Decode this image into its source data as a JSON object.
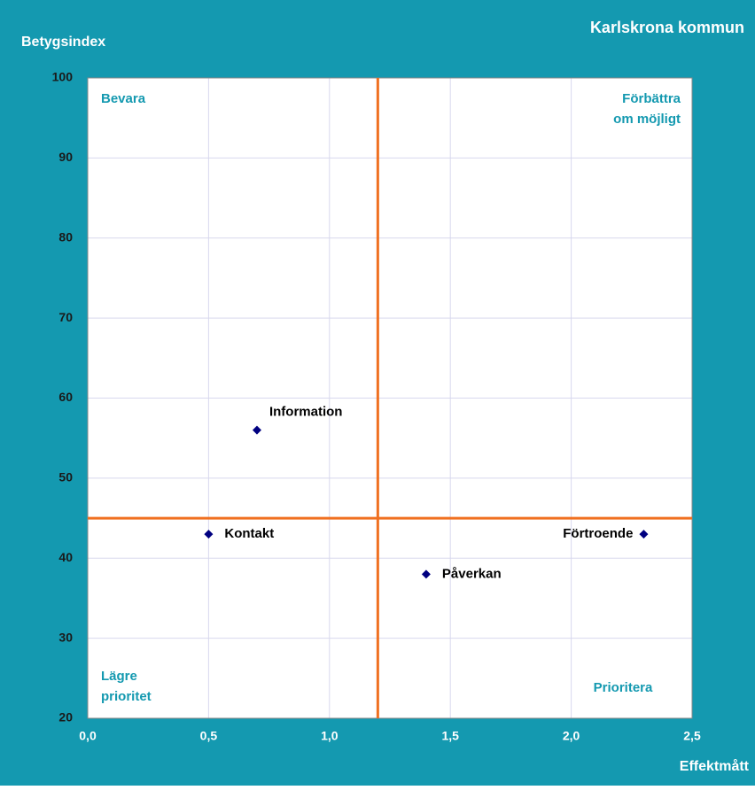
{
  "chart_data": {
    "type": "scatter",
    "title": "Karlskrona kommun",
    "ylabel": "Betygsindex",
    "xlabel": "Effektmått",
    "series": [
      {
        "name": "Betygsindex",
        "color": "#000080",
        "labels": [
          "Information",
          "Kontakt",
          "Förtroende",
          "Påverkan"
        ],
        "x": [
          0.7,
          0.5,
          2.3,
          1.4
        ],
        "values": [
          56,
          43,
          43,
          38
        ]
      }
    ],
    "xlim": [
      0,
      2.5
    ],
    "xticks": [
      {
        "value": 0,
        "label": "0,0"
      },
      {
        "value": 0.5,
        "label": "0,5"
      },
      {
        "value": 1,
        "label": "1,0"
      },
      {
        "value": 1.5,
        "label": "1,5"
      },
      {
        "value": 2,
        "label": "2,0"
      },
      {
        "value": 2.5,
        "label": "2,5"
      }
    ],
    "ylim": [
      20,
      100
    ],
    "yticks": [
      20,
      30,
      40,
      50,
      60,
      70,
      80,
      90,
      100
    ],
    "grid": true,
    "vlines": [
      1.2
    ],
    "hlines": [
      45
    ],
    "line_color": "#f07020",
    "annotations": [
      {
        "lines": [
          "Bevara"
        ],
        "corner": "top-left"
      },
      {
        "lines": [
          "Förbättra",
          "om möjligt"
        ],
        "corner": "top-right"
      },
      {
        "lines": [
          "Lägre",
          "prioritet"
        ],
        "corner": "bottom-left"
      },
      {
        "lines": [
          "Prioritera"
        ],
        "corner": "bottom-right"
      }
    ]
  }
}
